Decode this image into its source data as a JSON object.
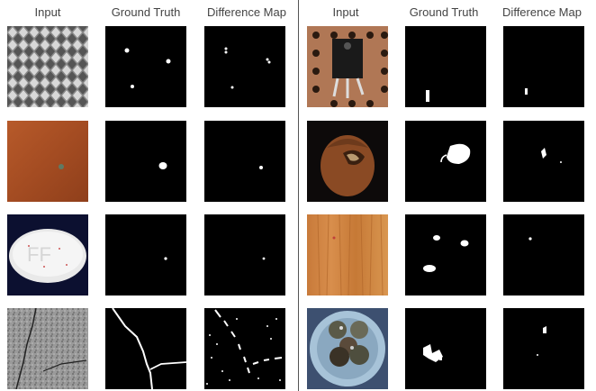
{
  "headers": {
    "left": [
      "Input",
      "Ground Truth",
      "Difference Map"
    ],
    "right": [
      "Input",
      "Ground Truth",
      "Difference Map"
    ]
  },
  "rows_left": [
    {
      "input": "metal-grid-texture",
      "ground_truth": "small-defect-spots",
      "difference_map": "small-defect-spots"
    },
    {
      "input": "leather-texture",
      "ground_truth": "single-defect-spot",
      "difference_map": "single-defect-spot"
    },
    {
      "input": "pill",
      "ground_truth": "tiny-defect-dot",
      "difference_map": "tiny-defect-dot"
    },
    {
      "input": "tile-crack-texture",
      "ground_truth": "crack-lines",
      "difference_map": "crack-noise"
    }
  ],
  "rows_right": [
    {
      "input": "transistor-on-board",
      "ground_truth": "lead-defect",
      "difference_map": "lead-defect"
    },
    {
      "input": "hazelnut",
      "ground_truth": "crack-region",
      "difference_map": "crack-region"
    },
    {
      "input": "wood-texture",
      "ground_truth": "wood-spots",
      "difference_map": "wood-spots"
    },
    {
      "input": "screw-bag-dish",
      "ground_truth": "cluster-region",
      "difference_map": "cluster-region"
    }
  ]
}
